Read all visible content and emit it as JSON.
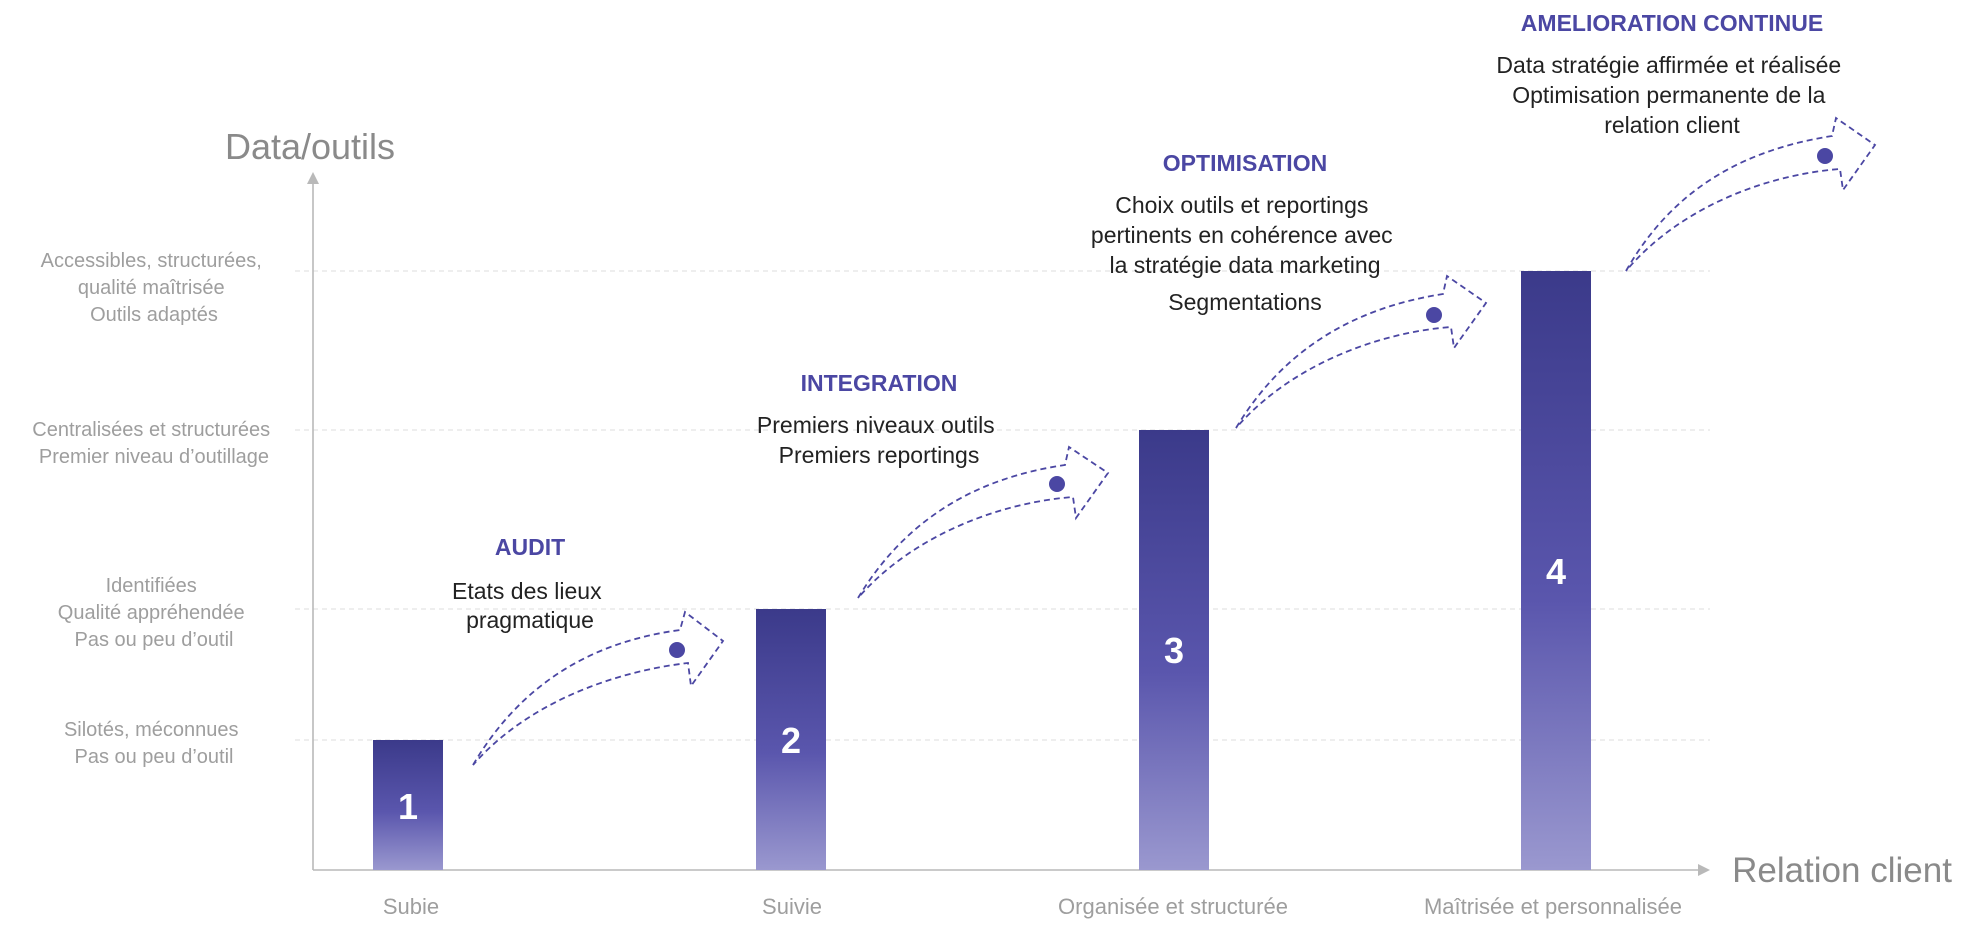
{
  "axes": {
    "y_label": "Data/outils",
    "x_label": "Relation client"
  },
  "colors": {
    "accent": "#4b47a3",
    "bar_top": "#3b3a8a",
    "bar_bottom": "#9a98cf",
    "axis": "#b9b9b9",
    "grid": "#e3e3e3",
    "muted_text": "#9e9e9e",
    "axis_title_text": "#8a8a8a",
    "body_text": "#222222"
  },
  "y_levels": [
    {
      "lines": [
        "Silotés, méconnues",
        "Pas ou peu d’outil"
      ]
    },
    {
      "lines": [
        "Identifiées",
        "Qualité appréhendée",
        "Pas ou peu d’outil"
      ]
    },
    {
      "lines": [
        "Centralisées et structurées",
        "Premier niveau d’outillage"
      ]
    },
    {
      "lines": [
        "Accessibles, structurées,",
        "qualité maîtrisée",
        "Outils adaptés"
      ]
    }
  ],
  "stages": [
    {
      "number": "1",
      "x_label": "Subie",
      "level": 1
    },
    {
      "number": "2",
      "x_label": "Suivie",
      "level": 2
    },
    {
      "number": "3",
      "x_label": "Organisée et structurée",
      "level": 3
    },
    {
      "number": "4",
      "x_label": "Maîtrisée et personnalisée",
      "level": 4
    }
  ],
  "transitions": [
    {
      "title": "AUDIT",
      "lines": [
        "Etats des lieux",
        "pragmatique"
      ],
      "extra": ""
    },
    {
      "title": "INTEGRATION",
      "lines": [
        "Premiers niveaux outils",
        "Premiers reportings"
      ],
      "extra": ""
    },
    {
      "title": "OPTIMISATION",
      "lines": [
        "Choix outils et reportings",
        "pertinents en cohérence avec",
        "la stratégie data marketing"
      ],
      "extra": "Segmentations"
    },
    {
      "title": "AMELIORATION CONTINUE",
      "lines": [
        "Data stratégie affirmée et réalisée",
        "Optimisation permanente de la",
        "relation client"
      ],
      "extra": ""
    }
  ]
}
